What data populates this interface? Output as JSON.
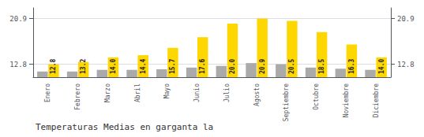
{
  "chart_data": {
    "type": "bar",
    "title": "Temperaturas Medias en garganta la",
    "categories": [
      "Enero",
      "Febrero",
      "Marzo",
      "Abril",
      "Mayo",
      "Junio",
      "Julio",
      "Agosto",
      "Septiembre",
      "Octubre",
      "Noviembre",
      "Diciembre"
    ],
    "series": [
      {
        "color": "#AAAAAA",
        "values": [
          11.5,
          11.5,
          11.8,
          11.8,
          11.9,
          12.2,
          12.5,
          13.0,
          12.8,
          12.2,
          12.0,
          11.8
        ]
      },
      {
        "color": "#FFD700",
        "values": [
          12.8,
          13.2,
          14.0,
          14.4,
          15.7,
          17.6,
          20.0,
          20.9,
          20.5,
          18.5,
          16.3,
          14.0
        ],
        "data_labels": true,
        "value_labels": [
          "12.8",
          "13.2",
          "14.0",
          "14.4",
          "15.7",
          "17.6",
          "20.0",
          "20.9",
          "20.5",
          "18.5",
          "16.3",
          "14.0"
        ]
      }
    ],
    "ylim": [
      10.5,
      22.8
    ],
    "yticks": [
      12.8,
      20.9
    ],
    "y2lim": [
      10.5,
      22.8
    ],
    "y2ticks": [
      12.8,
      20.9
    ],
    "grid": true
  }
}
